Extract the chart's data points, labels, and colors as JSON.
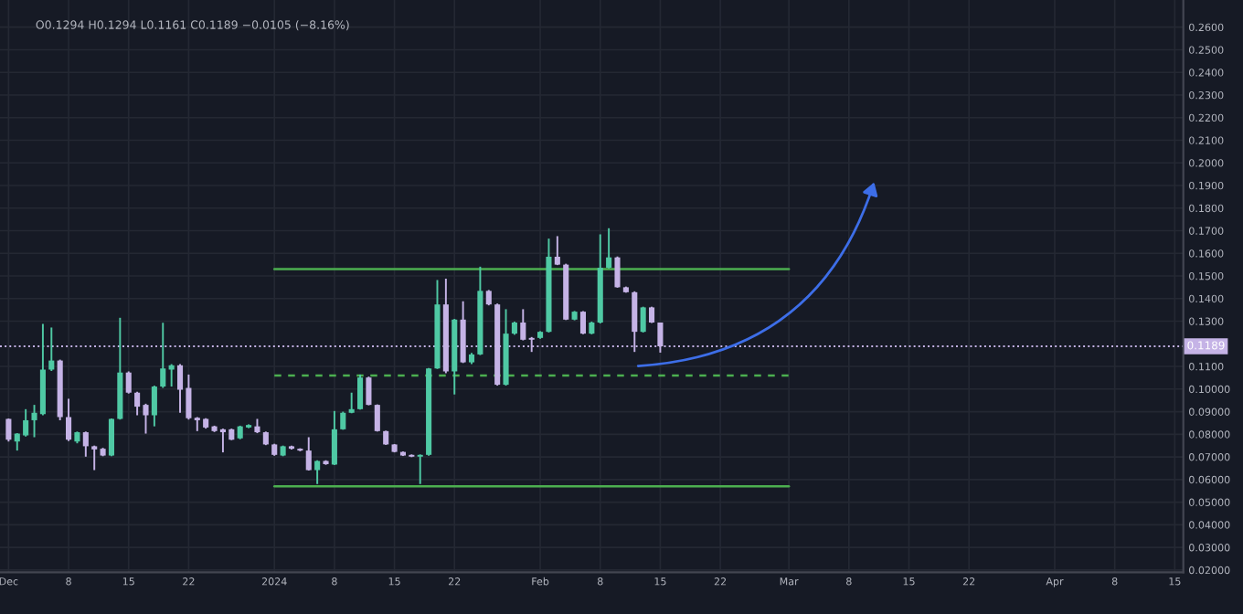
{
  "chart_data": {
    "type": "candlestick",
    "annotations": [
      "O0.1294 H0.1294 L0.1161 C0.1189 −0.0105 (−8.16%)"
    ],
    "x": [
      "2023-12-01",
      "2023-12-02",
      "2023-12-03",
      "2023-12-04",
      "2023-12-05",
      "2023-12-06",
      "2023-12-07",
      "2023-12-08",
      "2023-12-09",
      "2023-12-10",
      "2023-12-11",
      "2023-12-12",
      "2023-12-13",
      "2023-12-14",
      "2023-12-15",
      "2023-12-16",
      "2023-12-17",
      "2023-12-18",
      "2023-12-19",
      "2023-12-20",
      "2023-12-21",
      "2023-12-22",
      "2023-12-23",
      "2023-12-24",
      "2023-12-25",
      "2023-12-26",
      "2023-12-27",
      "2023-12-28",
      "2023-12-29",
      "2023-12-30",
      "2023-12-31",
      "2024-01-01",
      "2024-01-02",
      "2024-01-03",
      "2024-01-04",
      "2024-01-05",
      "2024-01-06",
      "2024-01-07",
      "2024-01-08",
      "2024-01-09",
      "2024-01-10",
      "2024-01-11",
      "2024-01-12",
      "2024-01-13",
      "2024-01-14",
      "2024-01-15",
      "2024-01-16",
      "2024-01-17",
      "2024-01-18",
      "2024-01-19",
      "2024-01-20",
      "2024-01-21",
      "2024-01-22",
      "2024-01-23",
      "2024-01-24",
      "2024-01-25",
      "2024-01-26",
      "2024-01-27",
      "2024-01-28",
      "2024-01-29",
      "2024-01-30",
      "2024-01-31",
      "2024-02-01",
      "2024-02-02",
      "2024-02-03",
      "2024-02-04",
      "2024-02-05",
      "2024-02-06",
      "2024-02-07",
      "2024-02-08",
      "2024-02-09",
      "2024-02-10",
      "2024-02-11",
      "2024-02-12",
      "2024-02-13",
      "2024-02-14",
      "2024-02-15"
    ],
    "ohlc": [
      [
        0.0868,
        0.087,
        0.0768,
        0.0776
      ],
      [
        0.0768,
        0.0805,
        0.0728,
        0.0803
      ],
      [
        0.0795,
        0.0911,
        0.079,
        0.0862
      ],
      [
        0.0862,
        0.093,
        0.0787,
        0.0895
      ],
      [
        0.0889,
        0.1288,
        0.0884,
        0.1086
      ],
      [
        0.1086,
        0.1272,
        0.108,
        0.1126
      ],
      [
        0.1126,
        0.113,
        0.0862,
        0.0876
      ],
      [
        0.0876,
        0.0957,
        0.077,
        0.0776
      ],
      [
        0.0768,
        0.0812,
        0.076,
        0.0809
      ],
      [
        0.0809,
        0.0812,
        0.0701,
        0.0747
      ],
      [
        0.0747,
        0.075,
        0.0642,
        0.0733
      ],
      [
        0.0736,
        0.074,
        0.0703,
        0.0706
      ],
      [
        0.0706,
        0.087,
        0.0703,
        0.0868
      ],
      [
        0.0868,
        0.1315,
        0.0865,
        0.1073
      ],
      [
        0.1073,
        0.1078,
        0.098,
        0.0984
      ],
      [
        0.0984,
        0.0988,
        0.0884,
        0.0922
      ],
      [
        0.093,
        0.0935,
        0.0803,
        0.0884
      ],
      [
        0.0884,
        0.1015,
        0.0835,
        0.1011
      ],
      [
        0.1011,
        0.1293,
        0.1005,
        0.1091
      ],
      [
        0.1086,
        0.111,
        0.1011,
        0.1105
      ],
      [
        0.1105,
        0.111,
        0.0895,
        0.0997
      ],
      [
        0.1005,
        0.1064,
        0.0865,
        0.0871
      ],
      [
        0.0873,
        0.0876,
        0.0814,
        0.0862
      ],
      [
        0.0868,
        0.0871,
        0.0825,
        0.083
      ],
      [
        0.0835,
        0.0838,
        0.081,
        0.0814
      ],
      [
        0.0822,
        0.0825,
        0.072,
        0.0809
      ],
      [
        0.0822,
        0.0825,
        0.0774,
        0.0776
      ],
      [
        0.0782,
        0.0838,
        0.0778,
        0.0835
      ],
      [
        0.083,
        0.0844,
        0.0827,
        0.0841
      ],
      [
        0.0835,
        0.0868,
        0.0805,
        0.0809
      ],
      [
        0.0809,
        0.0812,
        0.0752,
        0.0755
      ],
      [
        0.0755,
        0.0758,
        0.0705,
        0.0709
      ],
      [
        0.0706,
        0.075,
        0.0703,
        0.0747
      ],
      [
        0.0747,
        0.075,
        0.0733,
        0.0736
      ],
      [
        0.0736,
        0.0738,
        0.0725,
        0.0728
      ],
      [
        0.0728,
        0.0787,
        0.064,
        0.0642
      ],
      [
        0.0642,
        0.0685,
        0.058,
        0.0682
      ],
      [
        0.0682,
        0.0685,
        0.0665,
        0.0668
      ],
      [
        0.0666,
        0.0903,
        0.0664,
        0.0822
      ],
      [
        0.0822,
        0.09,
        0.082,
        0.0895
      ],
      [
        0.0895,
        0.0984,
        0.0893,
        0.0911
      ],
      [
        0.0911,
        0.1064,
        0.0909,
        0.1051
      ],
      [
        0.1051,
        0.1055,
        0.0928,
        0.093
      ],
      [
        0.093,
        0.0932,
        0.0812,
        0.0814
      ],
      [
        0.0814,
        0.0816,
        0.0753,
        0.0755
      ],
      [
        0.0755,
        0.0757,
        0.072,
        0.0722
      ],
      [
        0.0722,
        0.0724,
        0.0704,
        0.0706
      ],
      [
        0.0709,
        0.0711,
        0.0699,
        0.0701
      ],
      [
        0.0701,
        0.0711,
        0.058,
        0.0709
      ],
      [
        0.0709,
        0.1093,
        0.0705,
        0.1091
      ],
      [
        0.1091,
        0.1482,
        0.1089,
        0.1374
      ],
      [
        0.1374,
        0.1488,
        0.107,
        0.1078
      ],
      [
        0.1078,
        0.131,
        0.0976,
        0.1307
      ],
      [
        0.1307,
        0.1388,
        0.1115,
        0.1118
      ],
      [
        0.1118,
        0.116,
        0.111,
        0.1153
      ],
      [
        0.1153,
        0.1541,
        0.115,
        0.1434
      ],
      [
        0.1434,
        0.1438,
        0.137,
        0.1374
      ],
      [
        0.1374,
        0.1378,
        0.1015,
        0.1019
      ],
      [
        0.1019,
        0.1353,
        0.1015,
        0.1245
      ],
      [
        0.1245,
        0.1298,
        0.124,
        0.1294
      ],
      [
        0.1294,
        0.1353,
        0.1215,
        0.1218
      ],
      [
        0.1226,
        0.123,
        0.1164,
        0.1218
      ],
      [
        0.1226,
        0.1256,
        0.1222,
        0.1253
      ],
      [
        0.1253,
        0.1665,
        0.125,
        0.1585
      ],
      [
        0.1585,
        0.1676,
        0.1548,
        0.155
      ],
      [
        0.155,
        0.1554,
        0.1305,
        0.1307
      ],
      [
        0.1307,
        0.1345,
        0.1304,
        0.1342
      ],
      [
        0.1342,
        0.1345,
        0.1243,
        0.1245
      ],
      [
        0.1245,
        0.1298,
        0.1242,
        0.1294
      ],
      [
        0.1294,
        0.1684,
        0.129,
        0.1536
      ],
      [
        0.1536,
        0.1711,
        0.1533,
        0.1582
      ],
      [
        0.1582,
        0.1586,
        0.1448,
        0.145
      ],
      [
        0.145,
        0.1453,
        0.1426,
        0.1428
      ],
      [
        0.1428,
        0.1432,
        0.1164,
        0.1253
      ],
      [
        0.1253,
        0.1364,
        0.125,
        0.1361
      ],
      [
        0.1361,
        0.1364,
        0.1292,
        0.1294
      ],
      [
        0.1294,
        0.1294,
        0.1161,
        0.1189
      ]
    ],
    "series": [
      {
        "type": "line",
        "x": [
          "2024-01-01",
          "2024-03-01"
        ],
        "values": [
          0.153,
          0.153
        ],
        "color": "#4caf50",
        "line_style": "solid"
      },
      {
        "type": "line",
        "x": [
          "2024-01-01",
          "2024-03-01"
        ],
        "values": [
          0.106,
          0.106
        ],
        "color": "#4caf50",
        "line_style": "dashed"
      },
      {
        "type": "line",
        "x": [
          "2024-01-01",
          "2024-03-01"
        ],
        "values": [
          0.057,
          0.057
        ],
        "color": "#4caf50",
        "line_style": "solid"
      }
    ],
    "ref_lines": [
      {
        "axis": "y",
        "value": 0.1189,
        "label": "0.1189",
        "color": "#c5b3e6",
        "line_style": "dotted"
      }
    ],
    "xlim": [
      "2023-11-30",
      "2024-04-16"
    ],
    "xticks": [
      {
        "value": "2023-12-01",
        "label": "Dec"
      },
      {
        "value": "2023-12-08",
        "label": "8"
      },
      {
        "value": "2023-12-15",
        "label": "15"
      },
      {
        "value": "2023-12-22",
        "label": "22"
      },
      {
        "value": "2024-01-01",
        "label": "2024"
      },
      {
        "value": "2024-01-08",
        "label": "8"
      },
      {
        "value": "2024-01-15",
        "label": "15"
      },
      {
        "value": "2024-01-22",
        "label": "22"
      },
      {
        "value": "2024-02-01",
        "label": "Feb"
      },
      {
        "value": "2024-02-08",
        "label": "8"
      },
      {
        "value": "2024-02-15",
        "label": "15"
      },
      {
        "value": "2024-02-22",
        "label": "22"
      },
      {
        "value": "2024-03-01",
        "label": "Mar"
      },
      {
        "value": "2024-03-08",
        "label": "8"
      },
      {
        "value": "2024-03-15",
        "label": "15"
      },
      {
        "value": "2024-03-22",
        "label": "22"
      },
      {
        "value": "2024-04-01",
        "label": "Apr"
      },
      {
        "value": "2024-04-08",
        "label": "8"
      },
      {
        "value": "2024-04-15",
        "label": "15"
      }
    ],
    "ylim": [
      0.019,
      0.272
    ],
    "yticks": [
      {
        "value": 0.02,
        "label": "0.02000"
      },
      {
        "value": 0.03,
        "label": "0.03000"
      },
      {
        "value": 0.04,
        "label": "0.04000"
      },
      {
        "value": 0.05,
        "label": "0.05000"
      },
      {
        "value": 0.06,
        "label": "0.06000"
      },
      {
        "value": 0.07,
        "label": "0.07000"
      },
      {
        "value": 0.08,
        "label": "0.08000"
      },
      {
        "value": 0.09,
        "label": "0.09000"
      },
      {
        "value": 0.1,
        "label": "0.10000"
      },
      {
        "value": 0.11,
        "label": "0.1100"
      },
      {
        "value": 0.13,
        "label": "0.1300"
      },
      {
        "value": 0.14,
        "label": "0.1400"
      },
      {
        "value": 0.15,
        "label": "0.1500"
      },
      {
        "value": 0.16,
        "label": "0.1600"
      },
      {
        "value": 0.17,
        "label": "0.1700"
      },
      {
        "value": 0.18,
        "label": "0.1800"
      },
      {
        "value": 0.19,
        "label": "0.1900"
      },
      {
        "value": 0.2,
        "label": "0.2000"
      },
      {
        "value": 0.21,
        "label": "0.2100"
      },
      {
        "value": 0.22,
        "label": "0.2200"
      },
      {
        "value": 0.23,
        "label": "0.2300"
      },
      {
        "value": 0.24,
        "label": "0.2400"
      },
      {
        "value": 0.25,
        "label": "0.2500"
      },
      {
        "value": 0.26,
        "label": "0.2600"
      }
    ],
    "grid": true
  }
}
